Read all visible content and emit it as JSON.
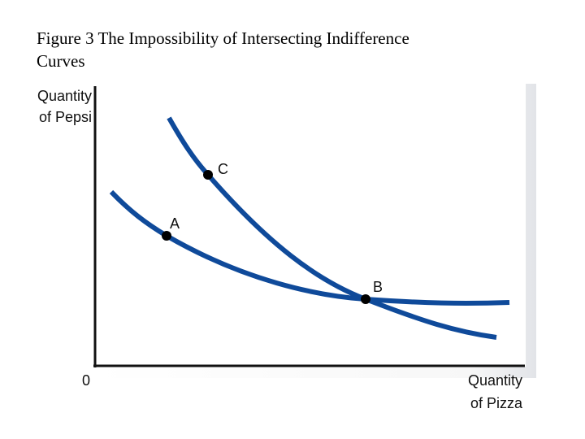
{
  "title": [
    "Figure 3 The Impossibility of Intersecting Indifference",
    "Curves"
  ],
  "y_axis_label": [
    "Quantity",
    "of Pepsi"
  ],
  "x_axis_label": [
    "Quantity",
    "of Pizza"
  ],
  "origin_label": "0",
  "points": [
    {
      "label": "C"
    },
    {
      "label": "A"
    },
    {
      "label": "B"
    }
  ]
}
